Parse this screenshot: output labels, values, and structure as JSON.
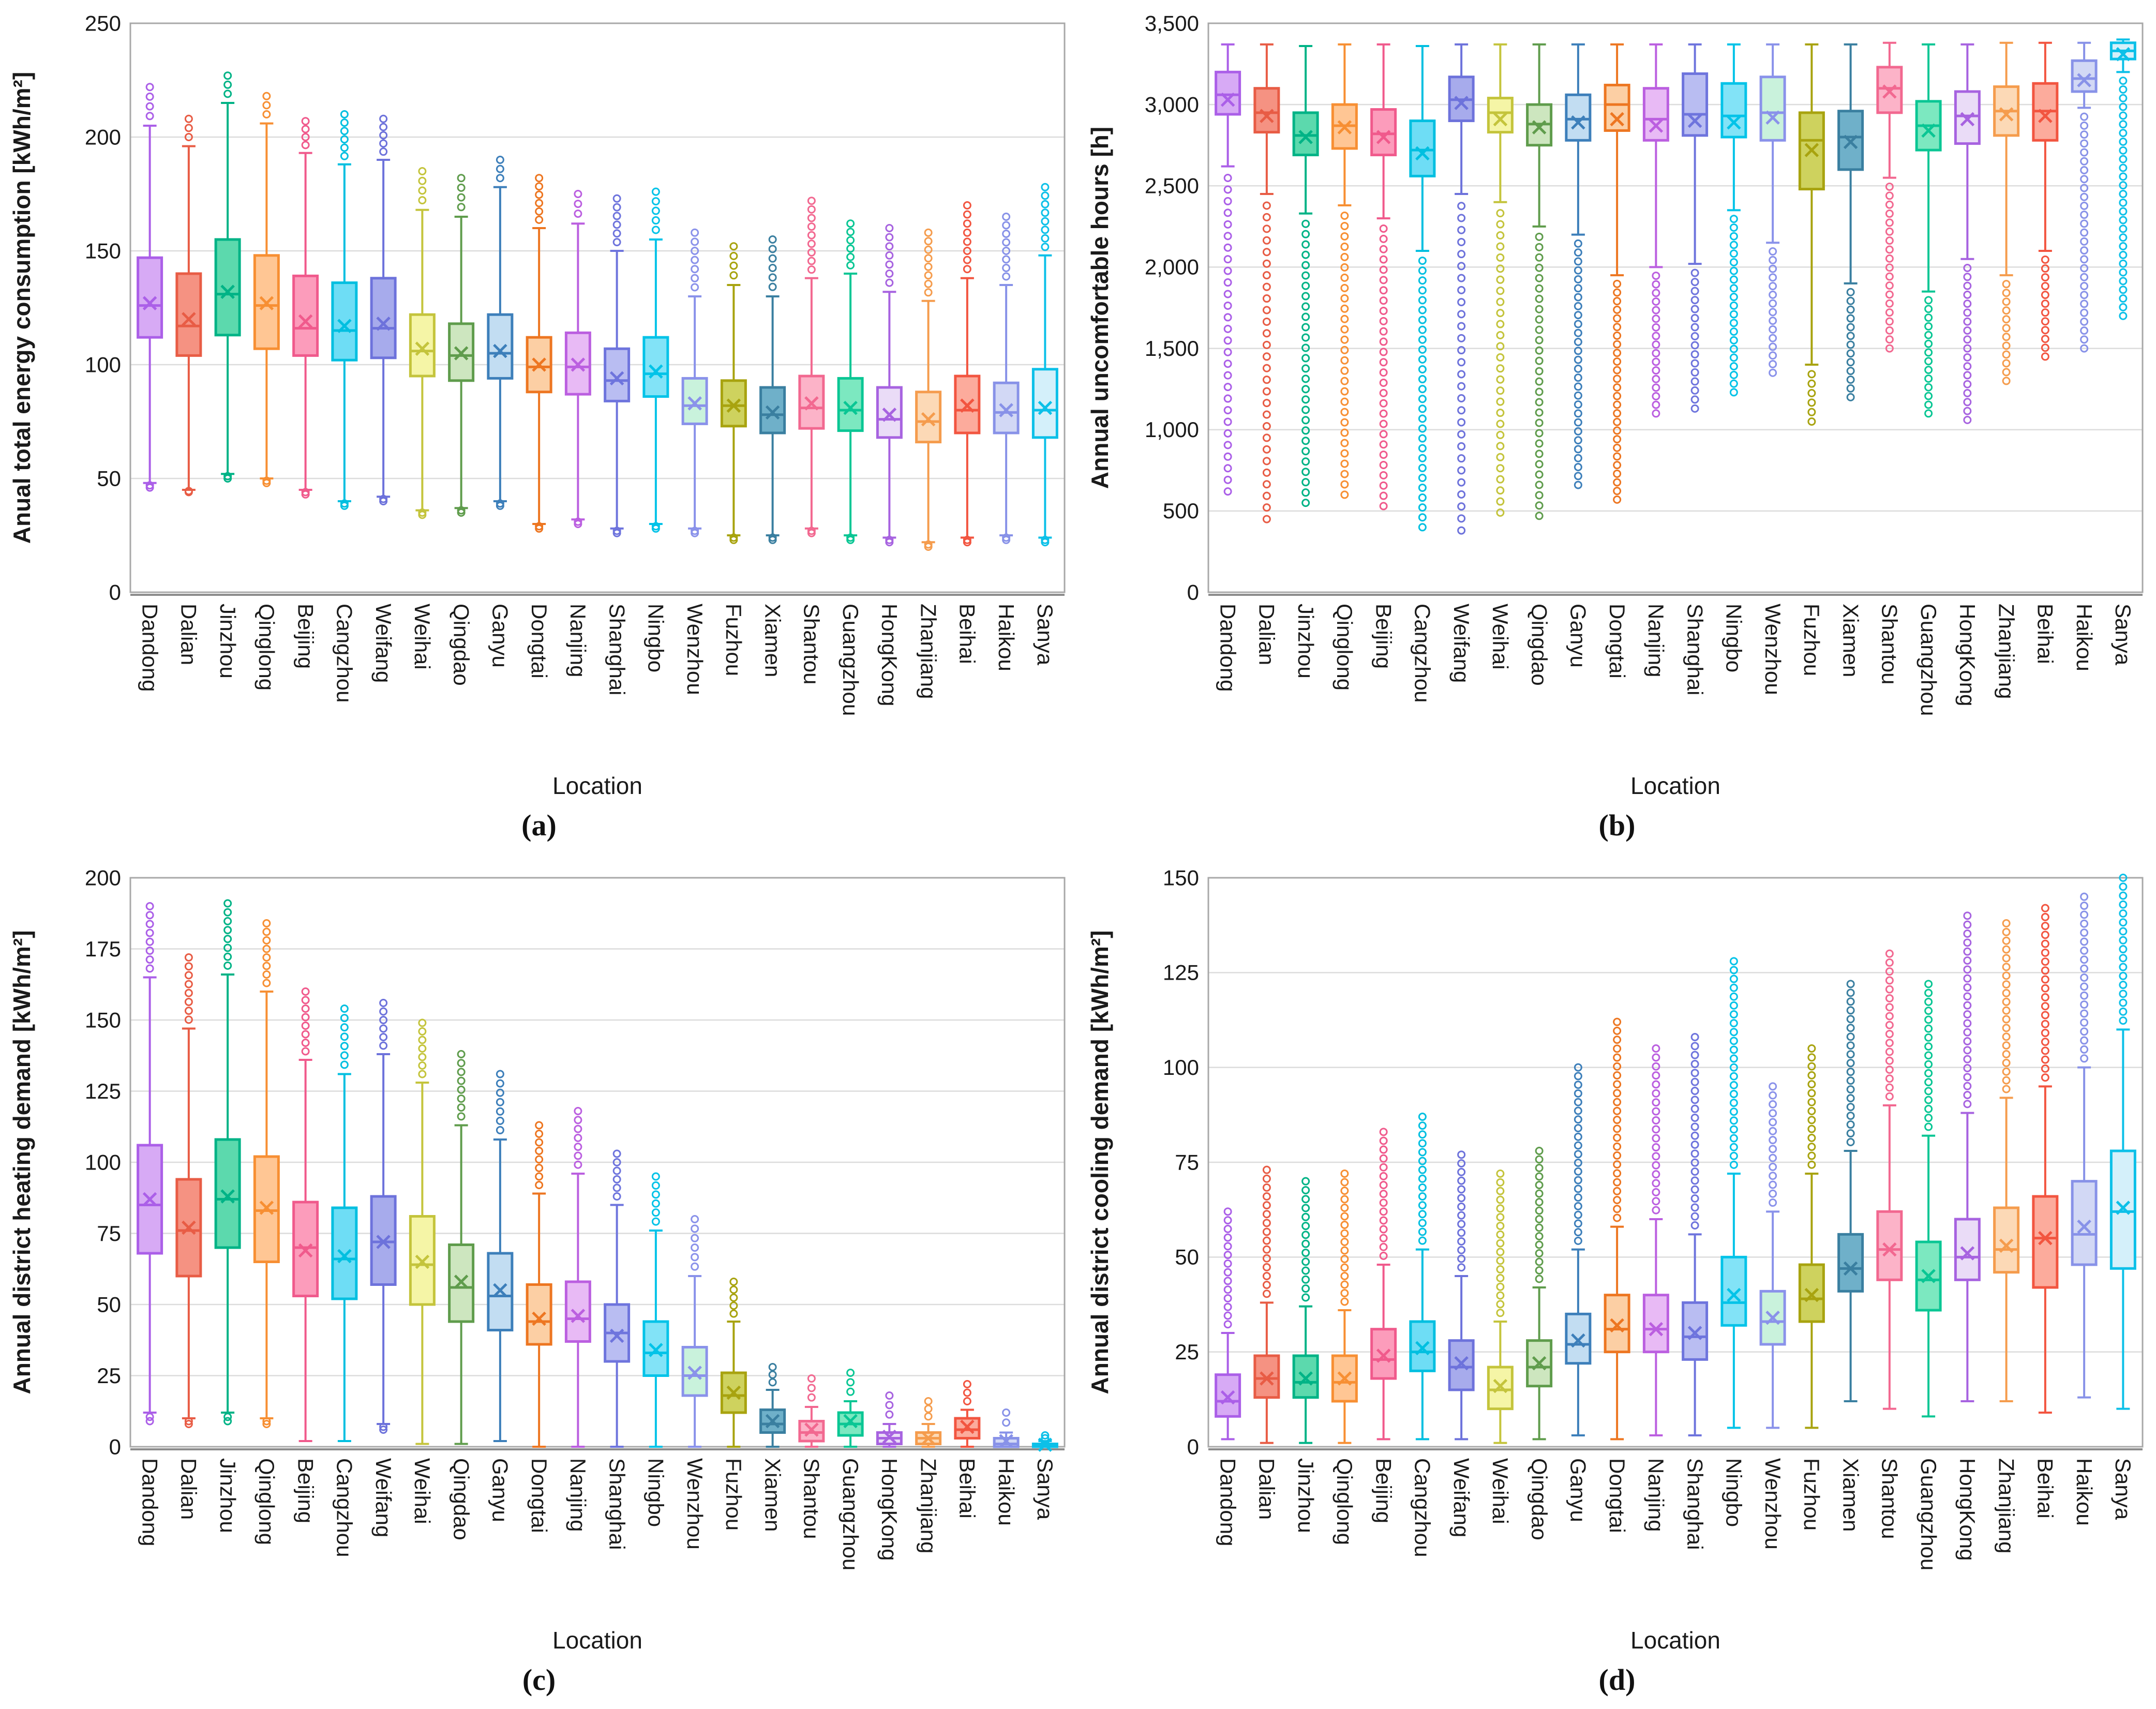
{
  "figure": {
    "xlabel": "Location"
  },
  "chart_data": {
    "type": "box",
    "categories": [
      "Dandong",
      "Dalian",
      "Jinzhou",
      "Qinglong",
      "Beijing",
      "Cangzhou",
      "Weifang",
      "Weihai",
      "Qingdao",
      "Ganyu",
      "Dongtai",
      "Nanjing",
      "Shanghai",
      "Ningbo",
      "Wenzhou",
      "Fuzhou",
      "Xiamen",
      "Shantou",
      "Guangzhou",
      "HongKong",
      "Zhanjiang",
      "Beihai",
      "Haikou",
      "Sanya"
    ],
    "palette": [
      {
        "fill": "#d7aaf5",
        "stroke": "#ab5fe8"
      },
      {
        "fill": "#f59282",
        "stroke": "#e85c45"
      },
      {
        "fill": "#5cd9ad",
        "stroke": "#00b386"
      },
      {
        "fill": "#ffc694",
        "stroke": "#f78f33"
      },
      {
        "fill": "#fc9cbb",
        "stroke": "#f05a8c"
      },
      {
        "fill": "#6eddf5",
        "stroke": "#00bfe0"
      },
      {
        "fill": "#a7abec",
        "stroke": "#6d72db"
      },
      {
        "fill": "#f5f5a6",
        "stroke": "#c4c43c"
      },
      {
        "fill": "#cde6bf",
        "stroke": "#5f9c4c"
      },
      {
        "fill": "#c2ddf2",
        "stroke": "#3d7fba"
      },
      {
        "fill": "#fccfa4",
        "stroke": "#ed7621"
      },
      {
        "fill": "#e8baf5",
        "stroke": "#bb5fe0"
      },
      {
        "fill": "#b9bdf2",
        "stroke": "#6e74dd"
      },
      {
        "fill": "#82e3f7",
        "stroke": "#03c3e8"
      },
      {
        "fill": "#c9f2dc",
        "stroke": "#8a92ea"
      },
      {
        "fill": "#ced25e",
        "stroke": "#a8a30f"
      },
      {
        "fill": "#6fb0c9",
        "stroke": "#3a7fa0"
      },
      {
        "fill": "#fcb3c8",
        "stroke": "#f26890"
      },
      {
        "fill": "#7ce8c0",
        "stroke": "#0ac694"
      },
      {
        "fill": "#eadcf7",
        "stroke": "#a763e0"
      },
      {
        "fill": "#fcd9b6",
        "stroke": "#f59c4d"
      },
      {
        "fill": "#fcab9c",
        "stroke": "#f25540"
      },
      {
        "fill": "#d2d8f5",
        "stroke": "#8892e8"
      },
      {
        "fill": "#d4f0fa",
        "stroke": "#0cc0e8"
      }
    ],
    "panels": [
      {
        "id": "a",
        "caption": "(a)",
        "ylabel": "Anual total energy consumption [kWh/m²]",
        "xlabel": "Location",
        "ymax": 250,
        "ystep": 50,
        "comma": false,
        "stats": [
          [
            48,
            112,
            126,
            147,
            205,
            127,
            46,
            222
          ],
          [
            45,
            104,
            117,
            140,
            196,
            120,
            44,
            208
          ],
          [
            52,
            113,
            131,
            155,
            215,
            132,
            50,
            227
          ],
          [
            50,
            107,
            126,
            148,
            206,
            127,
            48,
            218
          ],
          [
            45,
            104,
            116,
            139,
            193,
            119,
            43,
            207
          ],
          [
            40,
            102,
            115,
            136,
            188,
            117,
            38,
            210
          ],
          [
            42,
            103,
            116,
            138,
            190,
            118,
            40,
            208
          ],
          [
            36,
            95,
            106,
            122,
            168,
            107,
            34,
            185
          ],
          [
            37,
            93,
            104,
            118,
            165,
            105,
            35,
            182
          ],
          [
            40,
            94,
            105,
            122,
            178,
            106,
            38,
            190
          ],
          [
            30,
            88,
            99,
            112,
            160,
            100,
            28,
            182
          ],
          [
            32,
            87,
            99,
            114,
            162,
            100,
            30,
            175
          ],
          [
            28,
            84,
            93,
            107,
            150,
            94,
            26,
            173
          ],
          [
            30,
            86,
            96,
            112,
            155,
            97,
            28,
            176
          ],
          [
            28,
            74,
            82,
            94,
            130,
            83,
            26,
            158
          ],
          [
            25,
            73,
            82,
            93,
            135,
            82,
            23,
            152
          ],
          [
            25,
            70,
            78,
            90,
            130,
            79,
            23,
            155
          ],
          [
            28,
            72,
            81,
            95,
            138,
            83,
            26,
            172
          ],
          [
            25,
            71,
            80,
            94,
            140,
            81,
            23,
            162
          ],
          [
            24,
            68,
            76,
            90,
            132,
            78,
            22,
            160
          ],
          [
            22,
            66,
            75,
            88,
            128,
            76,
            20,
            158
          ],
          [
            24,
            70,
            80,
            95,
            138,
            82,
            22,
            170
          ],
          [
            25,
            70,
            79,
            92,
            135,
            80,
            23,
            165
          ],
          [
            24,
            68,
            80,
            98,
            148,
            81,
            22,
            178
          ]
        ]
      },
      {
        "id": "b",
        "caption": "(b)",
        "ylabel": "Annual uncomfortable hours [h]",
        "xlabel": "Location",
        "ymax": 3500,
        "ystep": 500,
        "comma": true,
        "stats": [
          [
            2620,
            2940,
            3060,
            3200,
            3370,
            3030,
            620,
            null
          ],
          [
            2450,
            2830,
            2950,
            3100,
            3370,
            2930,
            450,
            null
          ],
          [
            2330,
            2690,
            2810,
            2950,
            3360,
            2800,
            550,
            null
          ],
          [
            2380,
            2730,
            2870,
            3000,
            3370,
            2860,
            600,
            null
          ],
          [
            2300,
            2690,
            2820,
            2970,
            3370,
            2800,
            530,
            null
          ],
          [
            2100,
            2560,
            2720,
            2900,
            3360,
            2700,
            400,
            null
          ],
          [
            2450,
            2900,
            3030,
            3170,
            3370,
            3010,
            380,
            null
          ],
          [
            2400,
            2830,
            2950,
            3040,
            3370,
            2910,
            490,
            null
          ],
          [
            2250,
            2750,
            2880,
            3000,
            3370,
            2860,
            470,
            null
          ],
          [
            2200,
            2780,
            2910,
            3060,
            3370,
            2890,
            660,
            null
          ],
          [
            1950,
            2840,
            3000,
            3120,
            3370,
            2910,
            570,
            null
          ],
          [
            2000,
            2780,
            2910,
            3100,
            3370,
            2870,
            1100,
            null
          ],
          [
            2020,
            2810,
            2940,
            3190,
            3370,
            2900,
            1130,
            null
          ],
          [
            2350,
            2800,
            2930,
            3130,
            3370,
            2890,
            1230,
            null
          ],
          [
            2150,
            2780,
            2950,
            3170,
            3370,
            2920,
            1350,
            null
          ],
          [
            1400,
            2480,
            2780,
            2950,
            3370,
            2720,
            1050,
            null
          ],
          [
            1900,
            2600,
            2800,
            2960,
            3370,
            2770,
            1200,
            null
          ],
          [
            2550,
            2950,
            3100,
            3230,
            3380,
            3080,
            1500,
            null
          ],
          [
            1850,
            2720,
            2870,
            3020,
            3370,
            2840,
            1100,
            null
          ],
          [
            2050,
            2760,
            2930,
            3080,
            3370,
            2910,
            1060,
            null
          ],
          [
            1950,
            2810,
            2960,
            3110,
            3380,
            2940,
            1300,
            null
          ],
          [
            2100,
            2780,
            2960,
            3130,
            3380,
            2930,
            1450,
            null
          ],
          [
            2980,
            3080,
            3160,
            3270,
            3380,
            3150,
            1500,
            null
          ],
          [
            3200,
            3280,
            3330,
            3380,
            3400,
            3310,
            1700,
            null
          ]
        ]
      },
      {
        "id": "c",
        "caption": "(c)",
        "ylabel": "Annual district heating demand [kWh/m²]",
        "xlabel": "Location",
        "ymax": 200,
        "ystep": 25,
        "comma": false,
        "stats": [
          [
            12,
            68,
            85,
            106,
            165,
            87,
            9,
            190
          ],
          [
            10,
            60,
            76,
            94,
            147,
            77,
            8,
            172
          ],
          [
            12,
            70,
            87,
            108,
            166,
            88,
            9,
            191
          ],
          [
            10,
            65,
            83,
            102,
            160,
            84,
            8,
            184
          ],
          [
            2,
            53,
            70,
            86,
            136,
            69,
            null,
            160
          ],
          [
            2,
            52,
            66,
            84,
            131,
            67,
            null,
            154
          ],
          [
            8,
            57,
            72,
            88,
            138,
            72,
            6,
            156
          ],
          [
            1,
            50,
            64,
            81,
            128,
            65,
            null,
            149
          ],
          [
            1,
            44,
            56,
            71,
            113,
            58,
            null,
            138
          ],
          [
            2,
            41,
            53,
            68,
            108,
            55,
            null,
            131
          ],
          [
            0,
            36,
            44,
            57,
            89,
            45,
            null,
            113
          ],
          [
            0,
            37,
            45,
            58,
            96,
            46,
            null,
            118
          ],
          [
            0,
            30,
            40,
            50,
            85,
            39,
            null,
            103
          ],
          [
            0,
            25,
            33,
            44,
            76,
            34,
            null,
            95
          ],
          [
            0,
            18,
            25,
            35,
            60,
            26,
            null,
            80
          ],
          [
            0,
            12,
            18,
            26,
            44,
            19,
            null,
            58
          ],
          [
            0,
            5,
            8,
            13,
            20,
            9,
            null,
            28
          ],
          [
            0,
            2,
            5,
            9,
            14,
            6,
            null,
            24
          ],
          [
            0,
            4,
            8,
            12,
            16,
            9,
            null,
            26
          ],
          [
            0,
            1,
            3,
            5,
            8,
            3.5,
            null,
            18
          ],
          [
            0,
            1,
            3,
            5,
            8,
            3,
            null,
            16
          ],
          [
            0,
            3,
            6,
            10,
            13,
            7,
            null,
            22
          ],
          [
            0,
            0,
            1,
            3,
            5,
            2,
            null,
            12
          ],
          [
            0,
            0,
            0.4,
            1,
            2,
            0.7,
            null,
            4
          ]
        ]
      },
      {
        "id": "d",
        "caption": "(d)",
        "ylabel": "Annual district cooling demand [kWh/m²]",
        "xlabel": "Location",
        "ymax": 150,
        "ystep": 25,
        "comma": false,
        "stats": [
          [
            2,
            8,
            12,
            19,
            30,
            13,
            null,
            62
          ],
          [
            1,
            13,
            18,
            24,
            38,
            18,
            null,
            73
          ],
          [
            1,
            13,
            17,
            24,
            37,
            18,
            null,
            70
          ],
          [
            1,
            12,
            17,
            24,
            36,
            18,
            null,
            72
          ],
          [
            2,
            18,
            23,
            31,
            48,
            24,
            null,
            83
          ],
          [
            2,
            20,
            25,
            33,
            52,
            26,
            null,
            87
          ],
          [
            2,
            15,
            21,
            28,
            45,
            22,
            null,
            77
          ],
          [
            1,
            10,
            15,
            21,
            33,
            16,
            null,
            72
          ],
          [
            2,
            16,
            21,
            28,
            42,
            22,
            null,
            78
          ],
          [
            3,
            22,
            27,
            35,
            52,
            28,
            null,
            100
          ],
          [
            2,
            25,
            31,
            40,
            58,
            32,
            null,
            112
          ],
          [
            3,
            25,
            31,
            40,
            60,
            31,
            null,
            105
          ],
          [
            3,
            23,
            29,
            38,
            56,
            30,
            null,
            108
          ],
          [
            5,
            32,
            38,
            50,
            72,
            40,
            null,
            128
          ],
          [
            5,
            27,
            33,
            41,
            62,
            34,
            null,
            95
          ],
          [
            5,
            33,
            39,
            48,
            72,
            40,
            null,
            105
          ],
          [
            12,
            41,
            47,
            56,
            78,
            47,
            null,
            122
          ],
          [
            10,
            44,
            52,
            62,
            90,
            52,
            null,
            130
          ],
          [
            8,
            36,
            44,
            54,
            82,
            45,
            null,
            122
          ],
          [
            12,
            44,
            50,
            60,
            88,
            51,
            null,
            140
          ],
          [
            12,
            46,
            52,
            63,
            92,
            53,
            null,
            138
          ],
          [
            9,
            42,
            55,
            66,
            95,
            55,
            null,
            142
          ],
          [
            13,
            48,
            56,
            70,
            100,
            58,
            null,
            145
          ],
          [
            10,
            47,
            62,
            78,
            110,
            63,
            null,
            150
          ]
        ]
      }
    ]
  }
}
